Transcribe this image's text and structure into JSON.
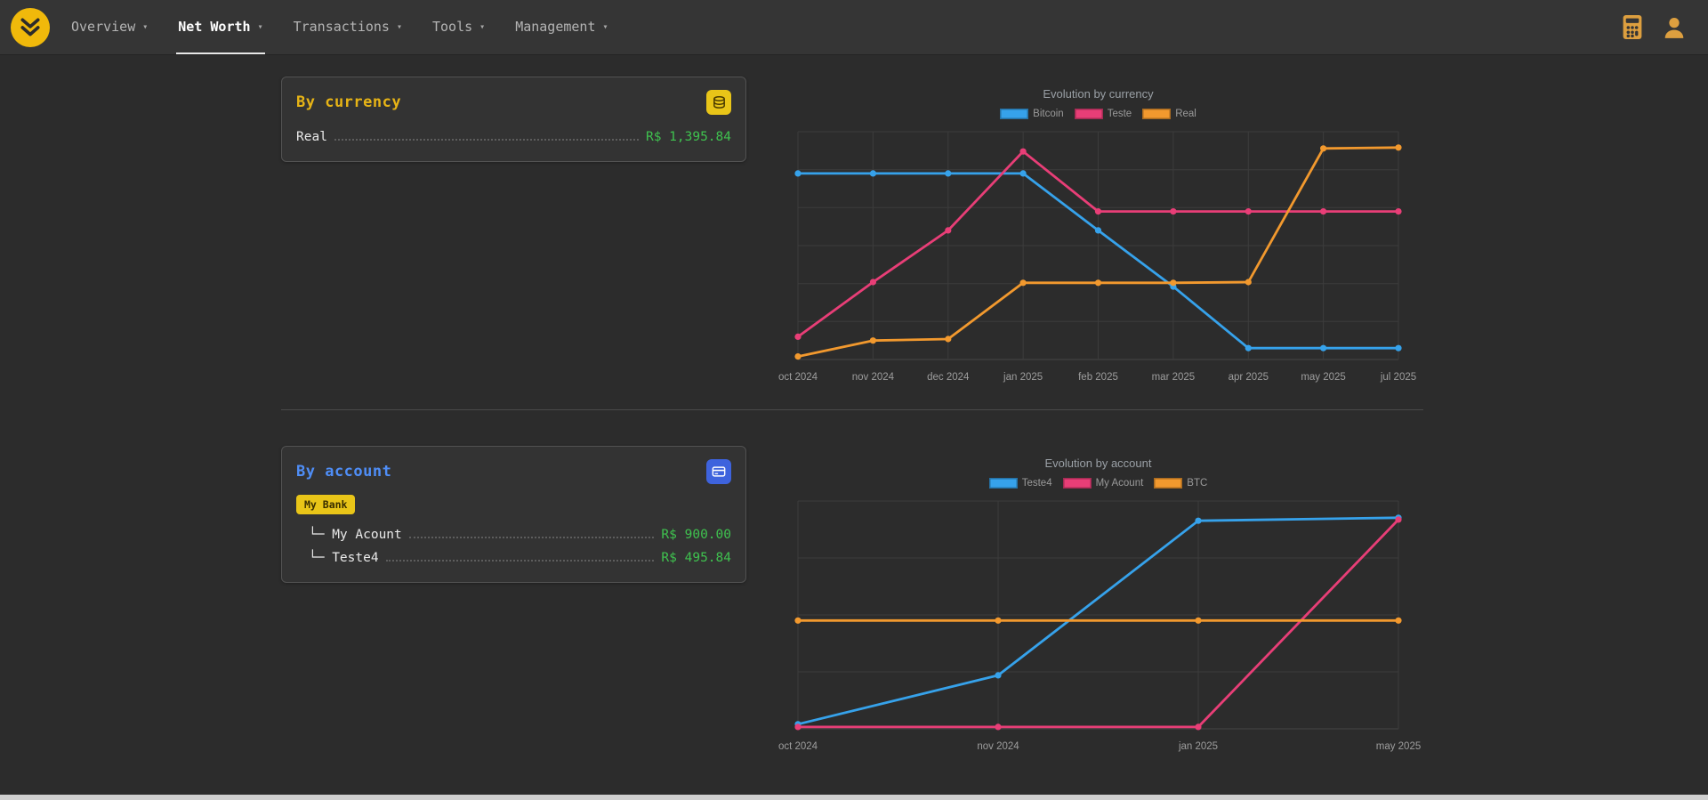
{
  "navbar": {
    "caret": "▾",
    "items": [
      {
        "label": "Overview"
      },
      {
        "label": "Net Worth",
        "active": true
      },
      {
        "label": "Transactions"
      },
      {
        "label": "Tools"
      },
      {
        "label": "Management"
      }
    ]
  },
  "cards": {
    "by_currency": {
      "title": "By currency",
      "rows": [
        {
          "label": "Real",
          "value": "R$ 1,395.84"
        }
      ]
    },
    "by_account": {
      "title": "By account",
      "badge": "My Bank",
      "rows": [
        {
          "label": "└─ My Acount",
          "value": "R$ 900.00"
        },
        {
          "label": "└─ Teste4",
          "value": "R$ 495.84"
        }
      ]
    }
  },
  "colors": {
    "accent_gold": "#e7b416",
    "accent_blue": "#4f8ef7",
    "positive_green": "#3fc24f",
    "chart_blue": "#36a2eb",
    "chart_pink": "#e83e77",
    "chart_orange": "#f2992e"
  },
  "chart_data": [
    {
      "type": "line",
      "title": "Evolution by currency",
      "x": [
        "oct 2024",
        "nov 2024",
        "dec 2024",
        "jan 2025",
        "feb 2025",
        "mar 2025",
        "apr 2025",
        "may 2025",
        "jul 2025"
      ],
      "series": [
        {
          "name": "Bitcoin",
          "color": "#36a2eb",
          "values": [
            1225,
            1225,
            1225,
            1225,
            850,
            480,
            75,
            75,
            75
          ]
        },
        {
          "name": "Teste",
          "color": "#e83e77",
          "values": [
            150,
            510,
            850,
            1370,
            975,
            975,
            975,
            975,
            975
          ]
        },
        {
          "name": "Real",
          "color": "#f2992e",
          "values": [
            20,
            125,
            135,
            505,
            505,
            505,
            510,
            1390,
            1395.84
          ]
        }
      ],
      "ylim": [
        0,
        1500
      ],
      "y_gridlines": 6,
      "legend_position": "top",
      "grid": true
    },
    {
      "type": "line",
      "title": "Evolution by account",
      "x": [
        "oct 2024",
        "nov 2024",
        "jan 2025",
        "may 2025"
      ],
      "series": [
        {
          "name": "Teste4",
          "color": "#36a2eb",
          "values": [
            20,
            230,
            895,
            908
          ]
        },
        {
          "name": "My Acount",
          "color": "#e83e77",
          "values": [
            8,
            8,
            8,
            900
          ]
        },
        {
          "name": "BTC",
          "color": "#f2992e",
          "values": [
            466,
            466,
            466,
            466
          ]
        }
      ],
      "ylim": [
        0,
        980
      ],
      "y_gridlines": 4,
      "legend_position": "top",
      "grid": true
    }
  ]
}
